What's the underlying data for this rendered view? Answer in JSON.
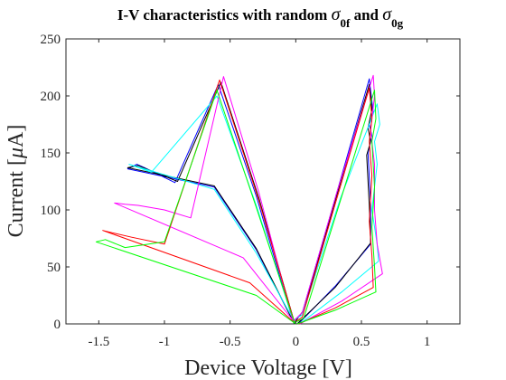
{
  "chart_data": {
    "type": "line",
    "title": "I-V characteristics with random σ_0f and σ_0g",
    "title_parts": {
      "prefix": "I-V characteristics with random ",
      "sigma": "σ",
      "sub1": "0f",
      "mid": " and ",
      "sub2": "0g"
    },
    "xlabel": "Device Voltage [V]",
    "ylabel": "Current [μA]",
    "ylabel_parts": {
      "prefix": "Current [",
      "mu": "μ",
      "suffix": "A]"
    },
    "xlim": [
      -1.75,
      1.25
    ],
    "ylim": [
      0,
      250
    ],
    "xticks": [
      -1.5,
      -1,
      -0.5,
      0,
      0.5,
      1
    ],
    "xtick_labels": [
      "-1.5",
      "-1",
      "-0.5",
      "0",
      "0.5",
      "1"
    ],
    "yticks": [
      0,
      50,
      100,
      150,
      200,
      250
    ],
    "ytick_labels": [
      "0",
      "50",
      "100",
      "150",
      "200",
      "250"
    ],
    "grid": false,
    "series": [
      {
        "color": "#0000ff",
        "points": [
          [
            -0.01,
            0
          ],
          [
            -0.3,
            65
          ],
          [
            -0.62,
            120
          ],
          [
            -1.28,
            136
          ],
          [
            -1.21,
            140
          ],
          [
            -1.15,
            137
          ],
          [
            -0.92,
            124
          ],
          [
            -0.59,
            210
          ],
          [
            -0.3,
            112
          ],
          [
            -0.02,
            2
          ],
          [
            0.05,
            10
          ],
          [
            0.3,
            110
          ],
          [
            0.56,
            215
          ],
          [
            0.59,
            185
          ],
          [
            0.56,
            175
          ],
          [
            0.58,
            165
          ],
          [
            0.55,
            150
          ],
          [
            0.57,
            105
          ],
          [
            0.57,
            70
          ],
          [
            0.3,
            33
          ],
          [
            0.02,
            0
          ]
        ]
      },
      {
        "color": "#000000",
        "points": [
          [
            -0.01,
            0
          ],
          [
            -0.3,
            66
          ],
          [
            -0.62,
            121
          ],
          [
            -1.28,
            137
          ],
          [
            -1.2,
            139
          ],
          [
            -1.14,
            136
          ],
          [
            -0.9,
            125
          ],
          [
            -0.57,
            212
          ],
          [
            -0.28,
            110
          ],
          [
            -0.01,
            1
          ],
          [
            0.06,
            12
          ],
          [
            0.31,
            112
          ],
          [
            0.56,
            210
          ],
          [
            0.58,
            188
          ],
          [
            0.55,
            172
          ],
          [
            0.57,
            160
          ],
          [
            0.54,
            148
          ],
          [
            0.56,
            104
          ],
          [
            0.57,
            71
          ],
          [
            0.3,
            32
          ],
          [
            0.01,
            0
          ]
        ]
      },
      {
        "color": "#00ffff",
        "points": [
          [
            0,
            0
          ],
          [
            -0.3,
            62
          ],
          [
            -0.62,
            118
          ],
          [
            -1.27,
            140
          ],
          [
            -1.22,
            138
          ],
          [
            -1.1,
            133
          ],
          [
            -0.6,
            200
          ],
          [
            -0.3,
            104
          ],
          [
            -0.02,
            3
          ],
          [
            0.05,
            8
          ],
          [
            0.34,
            110
          ],
          [
            0.62,
            193
          ],
          [
            0.64,
            175
          ],
          [
            0.6,
            160
          ],
          [
            0.62,
            140
          ],
          [
            0.58,
            100
          ],
          [
            0.62,
            70
          ],
          [
            0.63,
            55
          ],
          [
            0.35,
            28
          ],
          [
            0.03,
            0
          ]
        ]
      },
      {
        "color": "#ff00ff",
        "points": [
          [
            0,
            0
          ],
          [
            -0.4,
            58
          ],
          [
            -1.38,
            106
          ],
          [
            -1.3,
            105
          ],
          [
            -1.2,
            104
          ],
          [
            -1.0,
            100
          ],
          [
            -0.8,
            93
          ],
          [
            -0.55,
            217
          ],
          [
            -0.28,
            115
          ],
          [
            -0.02,
            2
          ],
          [
            0.05,
            10
          ],
          [
            0.32,
            118
          ],
          [
            0.59,
            218
          ],
          [
            0.6,
            200
          ],
          [
            0.57,
            170
          ],
          [
            0.6,
            140
          ],
          [
            0.6,
            100
          ],
          [
            0.62,
            70
          ],
          [
            0.66,
            44
          ],
          [
            0.35,
            20
          ],
          [
            0.03,
            0
          ]
        ]
      },
      {
        "color": "#ff0000",
        "points": [
          [
            0,
            0
          ],
          [
            -0.35,
            36
          ],
          [
            -1.47,
            82
          ],
          [
            -1.4,
            80
          ],
          [
            -1.25,
            76
          ],
          [
            -1.0,
            70
          ],
          [
            -0.58,
            214
          ],
          [
            -0.28,
            108
          ],
          [
            -0.01,
            1
          ],
          [
            0.05,
            6
          ],
          [
            0.3,
            105
          ],
          [
            0.56,
            207
          ],
          [
            0.58,
            180
          ],
          [
            0.56,
            160
          ],
          [
            0.58,
            130
          ],
          [
            0.56,
            90
          ],
          [
            0.58,
            60
          ],
          [
            0.59,
            32
          ],
          [
            0.3,
            14
          ],
          [
            0.02,
            0
          ]
        ]
      },
      {
        "color": "#00ff00",
        "points": [
          [
            0,
            0
          ],
          [
            -0.3,
            25
          ],
          [
            -1.52,
            72
          ],
          [
            -1.45,
            74
          ],
          [
            -1.3,
            67
          ],
          [
            -1.0,
            72
          ],
          [
            -0.6,
            205
          ],
          [
            -0.3,
            102
          ],
          [
            -0.01,
            1
          ],
          [
            0.06,
            5
          ],
          [
            0.34,
            108
          ],
          [
            0.6,
            205
          ],
          [
            0.61,
            180
          ],
          [
            0.58,
            160
          ],
          [
            0.6,
            120
          ],
          [
            0.58,
            85
          ],
          [
            0.6,
            50
          ],
          [
            0.61,
            28
          ],
          [
            0.3,
            12
          ],
          [
            0.01,
            0
          ]
        ]
      }
    ]
  }
}
